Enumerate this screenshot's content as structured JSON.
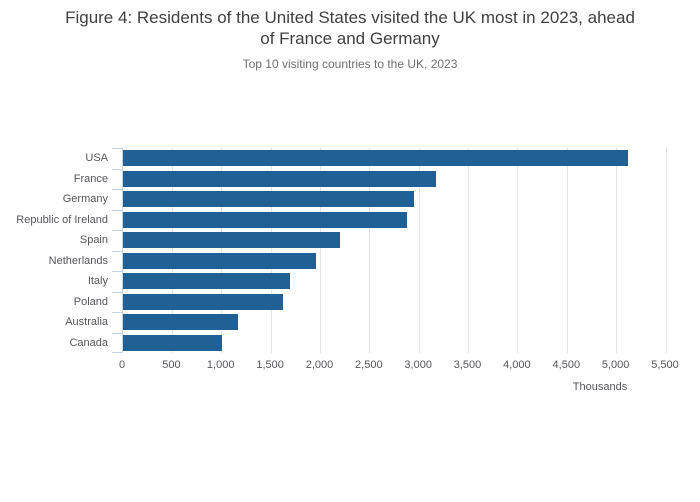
{
  "figure": {
    "title_line1": "Figure 4: Residents of the United States visited the UK most in 2023, ahead",
    "title_line2": "of France and Germany",
    "subtitle": "Top 10 visiting countries to the UK, 2023"
  },
  "chart_data": {
    "type": "bar",
    "orientation": "horizontal",
    "title": "Figure 4: Residents of the United States visited the UK most in 2023, ahead of France and Germany",
    "subtitle": "Top 10 visiting countries to the UK, 2023",
    "categories": [
      "USA",
      "France",
      "Germany",
      "Republic of Ireland",
      "Spain",
      "Netherlands",
      "Italy",
      "Poland",
      "Australia",
      "Canada"
    ],
    "values": [
      5110,
      3170,
      2950,
      2880,
      2200,
      1950,
      1690,
      1620,
      1160,
      1000
    ],
    "units": "Thousands",
    "xlabel": "Thousands",
    "ylabel": "",
    "xlim": [
      0,
      5500
    ],
    "xtick_labels": [
      "0",
      "500",
      "1,000",
      "1,500",
      "2,000",
      "2,500",
      "3,000",
      "3,500",
      "4,000",
      "4,500",
      "5,000",
      "5,500"
    ],
    "xtick_values": [
      0,
      500,
      1000,
      1500,
      2000,
      2500,
      3000,
      3500,
      4000,
      4500,
      5000,
      5500
    ],
    "grid": true,
    "legend": false,
    "colors": {
      "bar": "#206095",
      "gridline": "#e6e6e6",
      "axis_line": "#c3d3e3",
      "title_text": "#3f4042",
      "subtitle_text": "#707073",
      "axis_text": "#55565a",
      "background": "#ffffff"
    }
  }
}
